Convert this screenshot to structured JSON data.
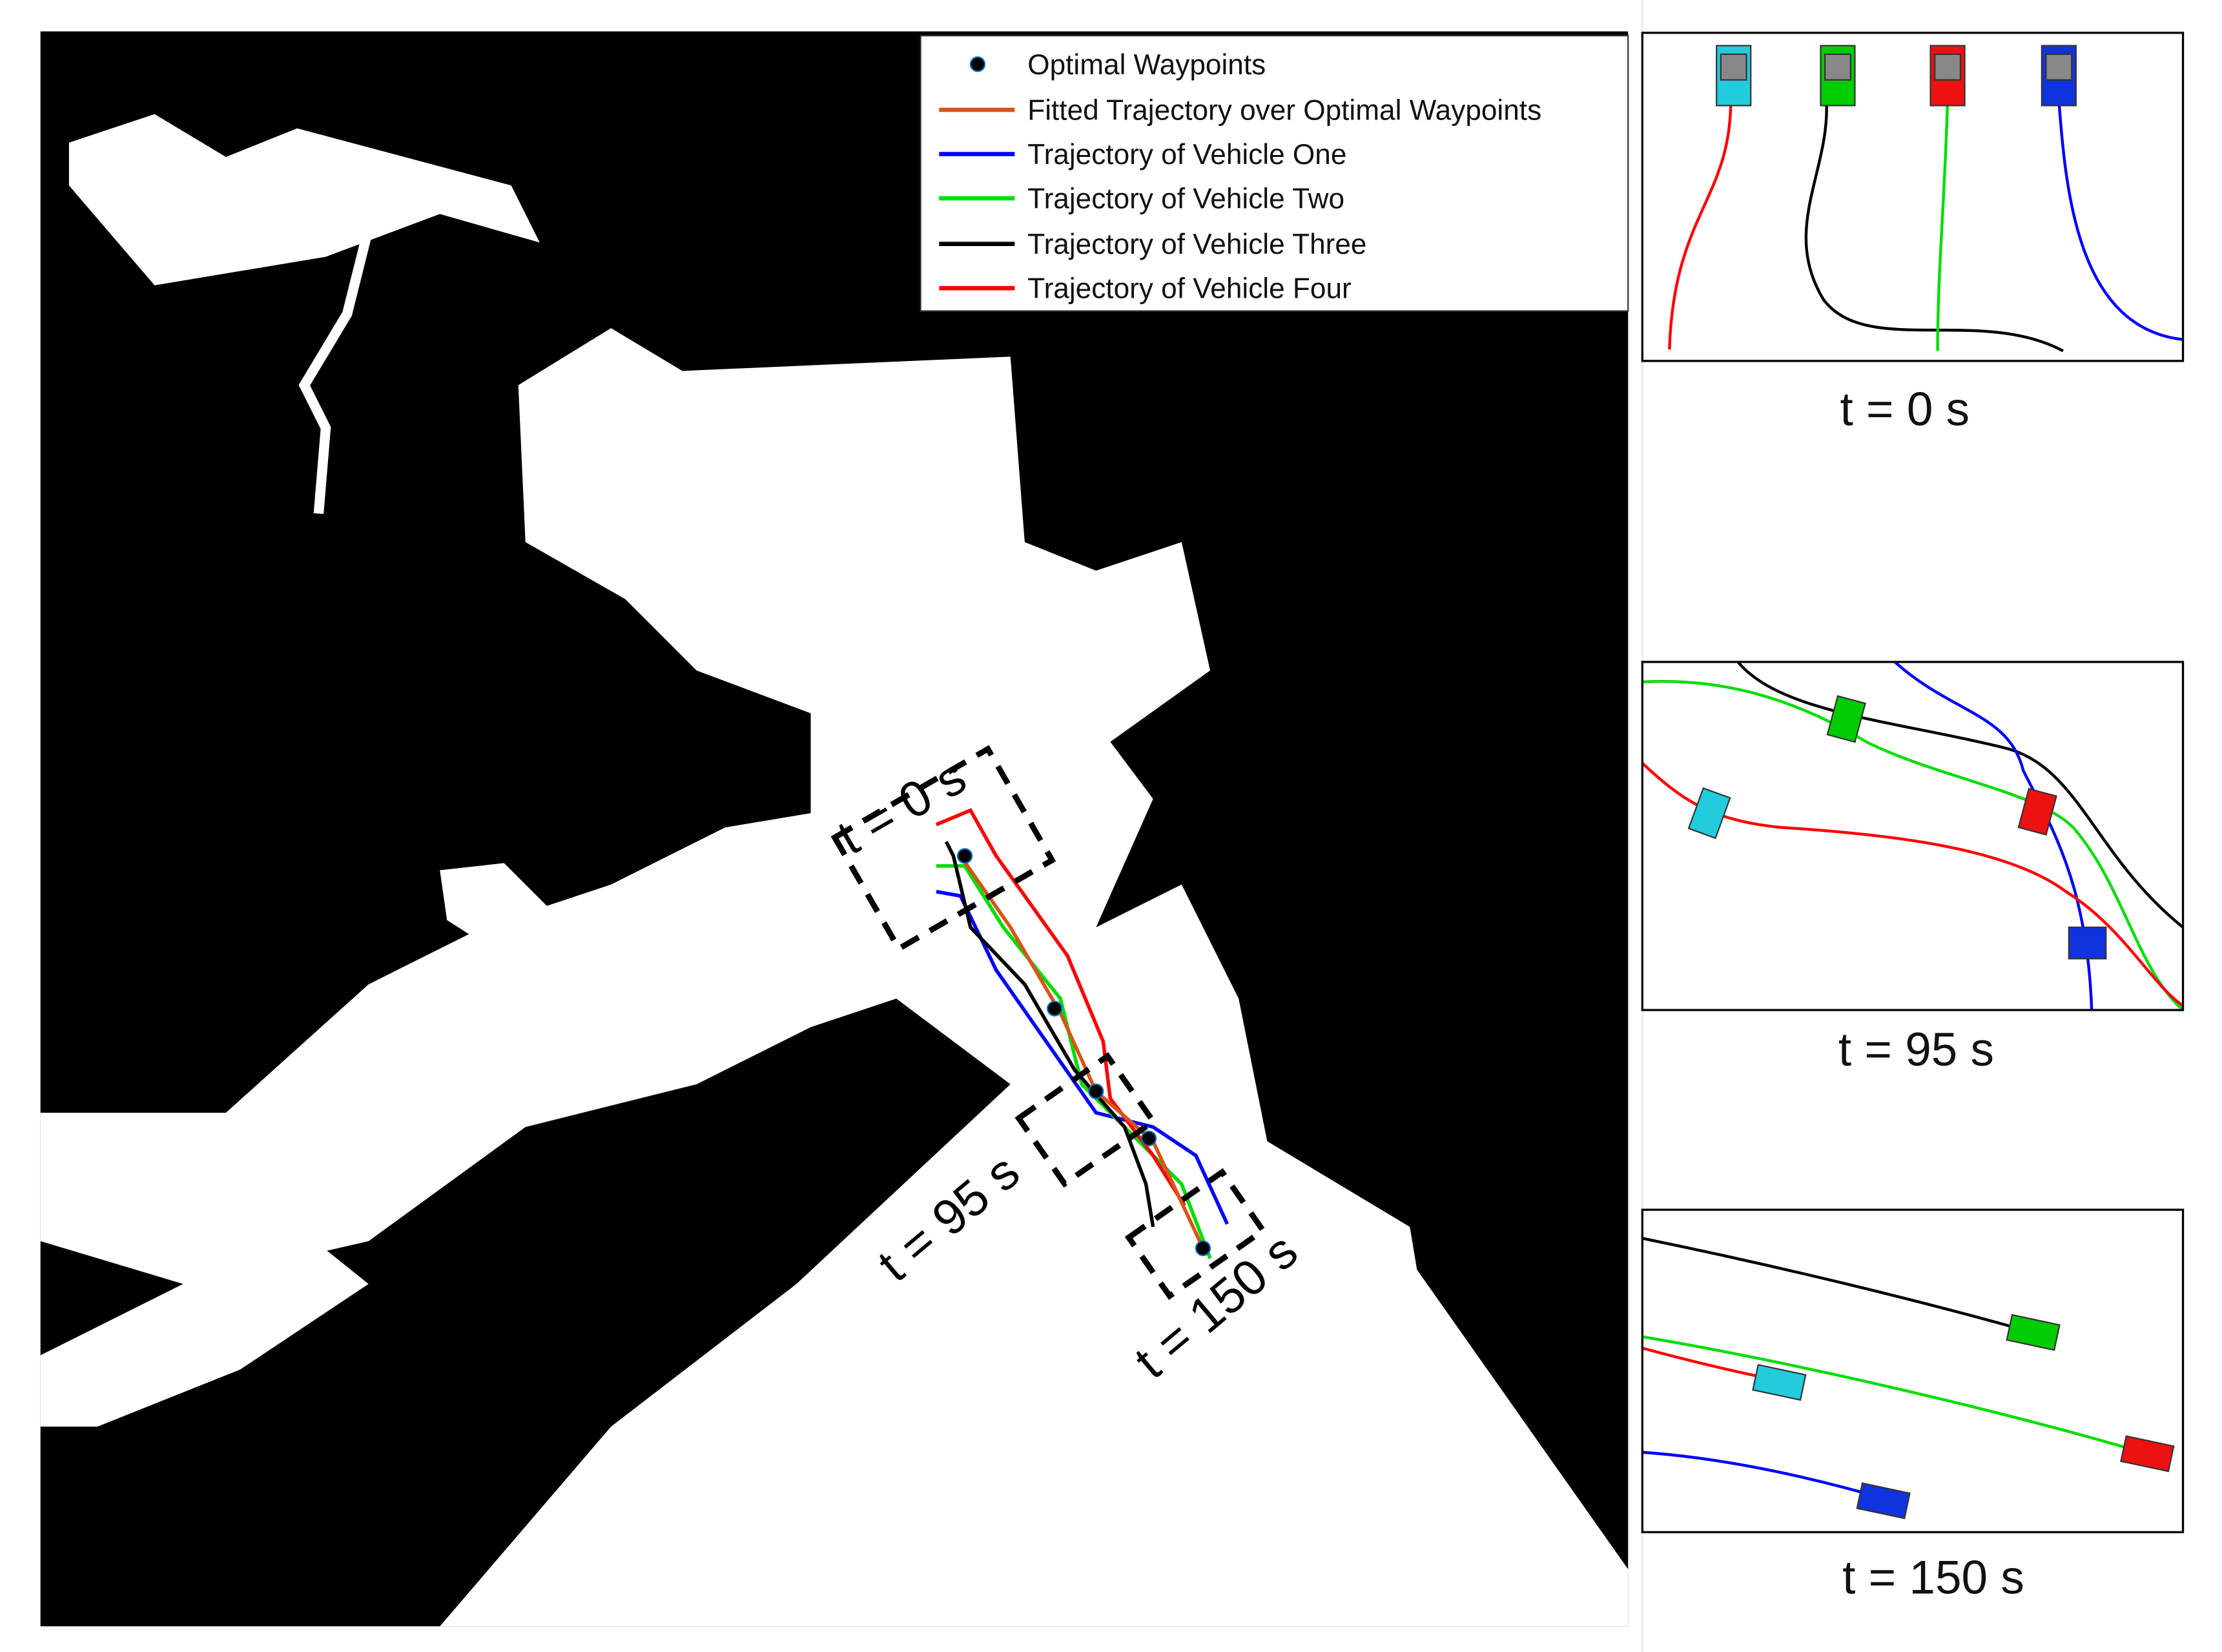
{
  "legend": {
    "entries": [
      "Optimal Waypoints",
      "Fitted Trajectory over Optimal Waypoints",
      "Trajectory of Vehicle One",
      "Trajectory of Vehicle Two",
      "Trajectory of Vehicle Three",
      "Trajectory of Vehicle Four"
    ]
  },
  "map_labels": [
    "t =  0 s",
    "t =  95 s",
    "t = 150 s"
  ],
  "panels": [
    {
      "caption": "t = 0 s"
    },
    {
      "caption": "t = 95 s"
    },
    {
      "caption": "t = 150 s"
    }
  ]
}
